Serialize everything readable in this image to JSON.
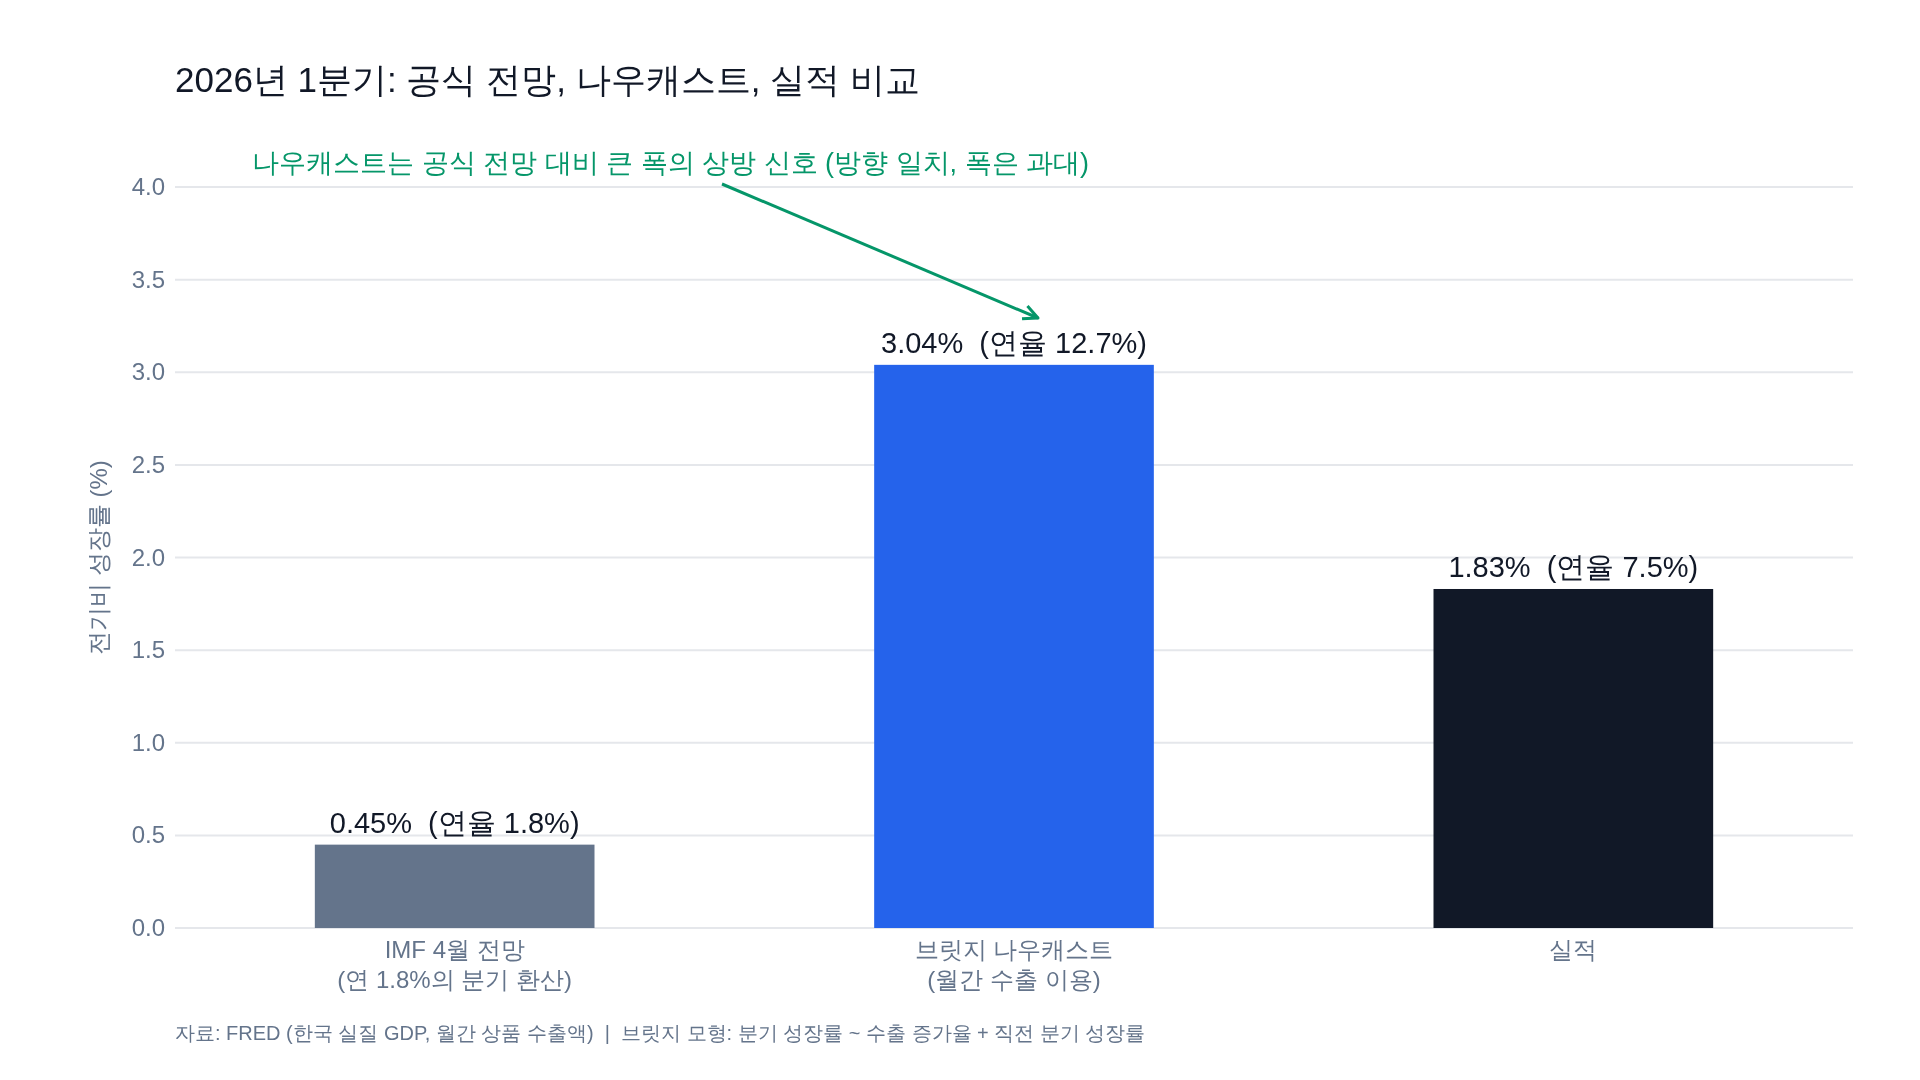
{
  "chart_data": {
    "type": "bar",
    "title": "2026년 1분기: 공식 전망, 나우캐스트, 실적 비교",
    "ylabel": "전기비 성장률 (%)",
    "categories": [
      "IMF 4월 전망\n(연 1.8%의 분기 환산)",
      "브릿지 나우캐스트\n(월간 수출 이용)",
      "실적"
    ],
    "values": [
      0.45,
      3.04,
      1.83
    ],
    "colors": [
      "#64748b",
      "#2563eb",
      "#111827"
    ],
    "value_labels": [
      "0.45%  (연율 1.8%)",
      "3.04%  (연율 12.7%)",
      "1.83%  (연율 7.5%)"
    ],
    "ylim": [
      0,
      4.0
    ],
    "yticks": [
      {
        "value": 0,
        "label": "0.0"
      },
      {
        "value": 0.5,
        "label": "0.5"
      },
      {
        "value": 1,
        "label": "1.0"
      },
      {
        "value": 1.5,
        "label": "1.5"
      },
      {
        "value": 2,
        "label": "2.0"
      },
      {
        "value": 2.5,
        "label": "2.5"
      },
      {
        "value": 3,
        "label": "3.0"
      },
      {
        "value": 3.5,
        "label": "3.5"
      },
      {
        "value": 4,
        "label": "4.0"
      }
    ],
    "grid": "y",
    "annotations": [
      "나우캐스트는 공식 전망 대비 큰 폭의 상방 신호 (방향 일치, 폭은 과대)",
      "자료: FRED (한국 실질 GDP, 월간 상품 수출액)  |  브릿지 모형: 분기 성장률 ~ 수출 증가율 + 직전 분기 성장률"
    ]
  }
}
